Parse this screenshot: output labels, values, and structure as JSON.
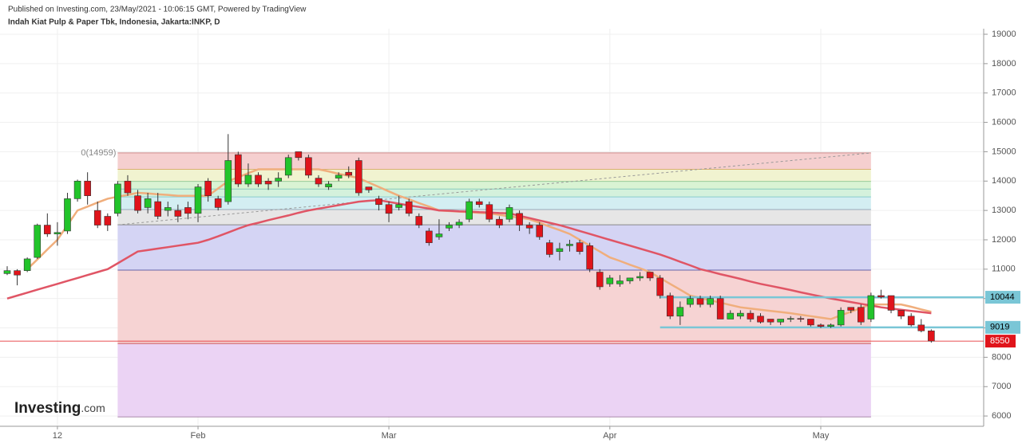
{
  "header": {
    "published": "Published on Investing.com, 23/May/2021 - 10:06:15 GMT, Powered by TradingView",
    "symbol": "Indah Kiat Pulp & Paper Tbk, Indonesia, Jakarta:INKP, D"
  },
  "logo": [
    "Investing",
    ".com"
  ],
  "chart_data": {
    "type": "candlestick",
    "categories": [
      null,
      null,
      null,
      null,
      null,
      "12",
      null,
      null,
      null,
      null,
      null,
      null,
      null,
      null,
      null,
      null,
      null,
      null,
      null,
      "Feb",
      null,
      null,
      null,
      null,
      null,
      null,
      null,
      null,
      null,
      null,
      null,
      null,
      null,
      null,
      null,
      null,
      null,
      null,
      "Mar",
      null,
      null,
      null,
      null,
      null,
      null,
      null,
      null,
      null,
      null,
      null,
      null,
      null,
      null,
      null,
      null,
      null,
      null,
      null,
      null,
      null,
      "Apr",
      null,
      null,
      null,
      null,
      null,
      null,
      null,
      null,
      null,
      null,
      null,
      null,
      null,
      null,
      null,
      null,
      null,
      null,
      null,
      null,
      "May",
      null,
      null,
      null,
      null,
      null,
      null,
      null,
      null,
      null,
      null,
      null
    ],
    "open": [
      10850,
      10950,
      10950,
      11400,
      12500,
      12200,
      12300,
      13400,
      14000,
      13000,
      12800,
      12900,
      14000,
      13500,
      13100,
      13300,
      13000,
      13000,
      13100,
      12900,
      14000,
      13400,
      13300,
      14900,
      13900,
      14200,
      14000,
      14000,
      14200,
      15000,
      14800,
      14100,
      13800,
      14100,
      14300,
      14700,
      13800,
      13400,
      13200,
      13100,
      13300,
      12800,
      12300,
      12100,
      12400,
      12500,
      12700,
      13300,
      13200,
      12700,
      12700,
      12900,
      12500,
      12500,
      11900,
      11600,
      11800,
      11900,
      11800,
      10900,
      10500,
      10500,
      10600,
      10700,
      10900,
      10700,
      10100,
      9400,
      9800,
      10000,
      9800,
      10000,
      9300,
      9400,
      9500,
      9400,
      9300,
      9200,
      9300,
      9320,
      9300,
      9100,
      9050,
      9100,
      9700,
      9700,
      9300,
      10100,
      10100,
      9600,
      9400,
      9100,
      8900
    ],
    "high": [
      11100,
      11000,
      11400,
      12550,
      12900,
      12600,
      13600,
      14050,
      14300,
      13300,
      12900,
      14000,
      14200,
      13700,
      13600,
      13600,
      13300,
      13200,
      13300,
      13900,
      14100,
      13500,
      15600,
      15000,
      14600,
      14300,
      14100,
      14300,
      14900,
      15000,
      14900,
      14200,
      14000,
      14300,
      14500,
      14800,
      13800,
      13500,
      13300,
      13500,
      13400,
      12900,
      12400,
      12700,
      12600,
      12700,
      13400,
      13400,
      13300,
      12800,
      13200,
      13000,
      12600,
      12600,
      12000,
      11900,
      12000,
      12000,
      11900,
      11000,
      10800,
      10800,
      10700,
      10900,
      10900,
      10800,
      10200,
      9900,
      10100,
      10100,
      10100,
      10100,
      9600,
      9600,
      9600,
      9500,
      9300,
      9300,
      9400,
      9400,
      9300,
      9150,
      9150,
      9700,
      9700,
      9800,
      10200,
      10300,
      10100,
      9600,
      9500,
      9300,
      8950
    ],
    "low": [
      10800,
      10450,
      10900,
      11350,
      12100,
      11800,
      12200,
      13300,
      13200,
      12400,
      12300,
      12800,
      13500,
      12900,
      12900,
      12700,
      12800,
      12600,
      12700,
      12600,
      13300,
      13000,
      13200,
      13800,
      13800,
      13800,
      13700,
      13800,
      14100,
      14700,
      14100,
      13800,
      13700,
      14000,
      14100,
      13500,
      13600,
      13000,
      12600,
      13000,
      12800,
      12400,
      11800,
      12000,
      12300,
      12400,
      12600,
      13100,
      12600,
      12400,
      12600,
      12300,
      12200,
      12000,
      11400,
      11300,
      11600,
      11500,
      10900,
      10300,
      10400,
      10400,
      10500,
      10600,
      10600,
      10000,
      9300,
      9100,
      9700,
      9700,
      9700,
      9300,
      9300,
      9300,
      9200,
      9150,
      9100,
      9100,
      9200,
      9200,
      9050,
      9000,
      9000,
      9050,
      9500,
      9100,
      9200,
      10000,
      9500,
      9300,
      9050,
      8850,
      8500
    ],
    "close": [
      10950,
      10800,
      11350,
      12500,
      12200,
      12250,
      13400,
      14000,
      13500,
      12500,
      12500,
      13900,
      13600,
      13000,
      13400,
      12800,
      13100,
      12800,
      12900,
      13800,
      13500,
      13100,
      14700,
      13900,
      14200,
      13900,
      13900,
      14100,
      14800,
      14800,
      14200,
      13900,
      13900,
      14200,
      14200,
      13600,
      13700,
      13200,
      12900,
      13200,
      12900,
      12500,
      11900,
      12200,
      12500,
      12600,
      13300,
      13200,
      12700,
      12500,
      13100,
      12500,
      12400,
      12100,
      11500,
      11700,
      11850,
      11600,
      11000,
      10400,
      10700,
      10600,
      10700,
      10750,
      10700,
      10100,
      9400,
      9700,
      10000,
      9800,
      10000,
      9300,
      9500,
      9500,
      9300,
      9200,
      9200,
      9300,
      9320,
      9300,
      9100,
      9050,
      9100,
      9600,
      9600,
      9200,
      10100,
      10050,
      9600,
      9400,
      9100,
      8900,
      8550
    ],
    "up_color": "#22c42a",
    "down_color": "#e0141b",
    "series": [
      {
        "color": "#f0ae7c",
        "values": [
          null,
          null,
          11000,
          11330,
          11670,
          12000,
          12500,
          13000,
          13130,
          13270,
          13400,
          13470,
          13530,
          13600,
          13580,
          13550,
          13530,
          13500,
          13500,
          13500,
          13500,
          13750,
          14000,
          14130,
          14270,
          14400,
          14400,
          14400,
          14400,
          14400,
          14400,
          14400,
          14330,
          14250,
          14180,
          14100,
          13950,
          13800,
          13650,
          13500,
          13380,
          13250,
          13130,
          13000,
          12980,
          12960,
          12940,
          12920,
          12900,
          12850,
          12800,
          12750,
          12700,
          12580,
          12450,
          12330,
          12200,
          12000,
          11800,
          11600,
          11400,
          11280,
          11150,
          11030,
          10900,
          10700,
          10500,
          10300,
          10100,
          10020,
          9940,
          9860,
          9780,
          9700,
          9660,
          9620,
          9580,
          9540,
          9500,
          9450,
          9400,
          9350,
          9300,
          9430,
          9550,
          9680,
          9800,
          9800,
          9800,
          9800,
          9720,
          9630,
          9550
        ]
      },
      {
        "color": "#e05565",
        "values": [
          10000,
          10100,
          10200,
          10300,
          10400,
          10500,
          10600,
          10700,
          10800,
          10900,
          11000,
          11200,
          11400,
          11600,
          11650,
          11700,
          11750,
          11800,
          11850,
          11900,
          12000,
          12120,
          12250,
          12380,
          12500,
          12580,
          12670,
          12750,
          12830,
          12920,
          13000,
          13060,
          13120,
          13180,
          13240,
          13300,
          13330,
          13350,
          13290,
          13230,
          13170,
          13120,
          13060,
          13000,
          12990,
          12970,
          12960,
          12940,
          12930,
          12910,
          12900,
          12820,
          12740,
          12660,
          12580,
          12500,
          12400,
          12300,
          12200,
          12100,
          12000,
          11900,
          11800,
          11700,
          11600,
          11500,
          11380,
          11250,
          11130,
          11000,
          10920,
          10830,
          10750,
          10670,
          10580,
          10500,
          10430,
          10360,
          10290,
          10210,
          10140,
          10070,
          10000,
          9940,
          9880,
          9820,
          9760,
          9700,
          9660,
          9620,
          9580,
          9540,
          9500
        ]
      }
    ],
    "trend_line": {
      "x": [
        11,
        86
      ],
      "y": [
        12510,
        14959
      ]
    },
    "fib": {
      "label": "0(14959)",
      "levels": [
        14959,
        14400,
        13990,
        13730,
        13460,
        13030,
        12510,
        10970,
        8470,
        5970
      ],
      "fills": [
        "#f5cfcf",
        "#f1f3d0",
        "#d9f3d3",
        "#d4f1dc",
        "#d3eef2",
        "#e6e6e6",
        "#d4d4f4",
        "#f6d3d3",
        "#ebd3f4"
      ],
      "line_colors": [
        "#c88",
        "#d8b070",
        "#9c9",
        "#8cb",
        "#8cc",
        "#9ab",
        "#888",
        "#66a",
        "#c55",
        "#a8a"
      ]
    },
    "hlines": [
      {
        "value": 10044,
        "from": 65,
        "color": "#7ac6d6"
      },
      {
        "value": 9019,
        "from": 65,
        "color": "#7ac6d6"
      }
    ],
    "last_price": {
      "value": 8550,
      "color": "#e0141b"
    },
    "ylim": [
      5650,
      19190
    ],
    "yticks": [
      19000,
      18000,
      17000,
      16000,
      15000,
      14000,
      13000,
      12000,
      11000,
      10000,
      9000,
      8000,
      7000,
      6000
    ]
  }
}
